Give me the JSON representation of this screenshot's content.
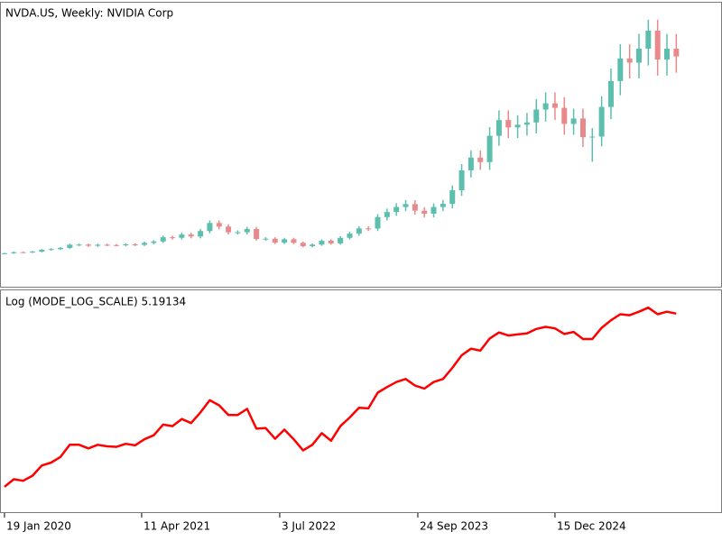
{
  "chart_data": [
    {
      "type": "candlestick",
      "title": "NVDA.US, Weekly:  NVIDIA Corp",
      "open": [
        5.6,
        5.9,
        6.8,
        6.6,
        7.3,
        8.9,
        9.5,
        10.6,
        13.4,
        13.5,
        12.5,
        13.4,
        13.1,
        13.0,
        13.7,
        13.3,
        15.0,
        16.3,
        20.0,
        19.5,
        22.4,
        20.7,
        25.5,
        32.6,
        29.4,
        24.4,
        24.4,
        27.3,
        18.5,
        18.7,
        15.2,
        18.2,
        15.1,
        12.1,
        13.5,
        16.9,
        14.6,
        19.5,
        23.2,
        27.8,
        27.7,
        37.8,
        42.3,
        46.7,
        49.3,
        43.5,
        40.8,
        46.7,
        49.5,
        61.5,
        79.1,
        90.4,
        86.4,
        109.6,
        123.5,
        117.0,
        119.4,
        121.4,
        132.8,
        138.3,
        134.3,
        120.1,
        124.9,
        108.4,
        108.9,
        135.1,
        158.0,
        177.9,
        174.2,
        186.6,
        202.5,
        177.0,
        186.5
      ],
      "high": [
        6.3,
        7.3,
        7.3,
        7.8,
        9.5,
        10.2,
        11.3,
        14.3,
        14.4,
        14.4,
        14.3,
        14.3,
        14.0,
        14.7,
        14.7,
        16.1,
        17.4,
        21.4,
        21.4,
        24.0,
        24.0,
        27.3,
        34.9,
        34.9,
        31.5,
        26.1,
        29.2,
        29.2,
        20.0,
        20.0,
        19.5,
        19.5,
        16.2,
        14.4,
        18.1,
        18.1,
        20.9,
        24.8,
        29.7,
        29.7,
        40.4,
        45.3,
        50.0,
        52.8,
        52.8,
        46.5,
        50.0,
        53.0,
        65.8,
        84.6,
        96.7,
        96.7,
        117.3,
        132.1,
        132.1,
        127.8,
        129.9,
        142.1,
        148.0,
        148.0,
        143.7,
        133.6,
        133.6,
        116.5,
        144.6,
        169.1,
        190.4,
        190.4,
        199.7,
        212.2,
        212.2,
        199.6,
        199.6
      ],
      "low": [
        5.2,
        5.4,
        6.1,
        6.1,
        6.7,
        8.2,
        8.7,
        9.8,
        12.3,
        11.5,
        11.5,
        12.1,
        12.0,
        12.0,
        12.2,
        12.2,
        13.8,
        15.0,
        17.9,
        17.9,
        19.0,
        19.0,
        23.5,
        27.0,
        22.4,
        22.4,
        22.4,
        17.0,
        17.0,
        14.0,
        14.0,
        13.9,
        11.1,
        11.1,
        12.4,
        13.4,
        13.4,
        17.9,
        21.3,
        25.5,
        25.5,
        34.8,
        38.9,
        43.0,
        40.0,
        37.5,
        37.5,
        43.0,
        45.5,
        56.6,
        72.8,
        79.5,
        79.5,
        100.8,
        107.6,
        107.6,
        109.8,
        111.7,
        122.2,
        123.6,
        110.5,
        110.5,
        99.7,
        86.6,
        100.2,
        124.3,
        145.4,
        160.3,
        160.3,
        171.7,
        162.8,
        162.8,
        165.3
      ],
      "close": [
        5.9,
        6.8,
        6.6,
        7.3,
        8.9,
        9.5,
        10.6,
        13.4,
        13.5,
        12.5,
        13.4,
        13.1,
        13.0,
        13.7,
        13.3,
        15.0,
        16.3,
        20.0,
        19.5,
        22.4,
        20.7,
        25.5,
        32.6,
        29.4,
        24.4,
        24.4,
        27.3,
        18.5,
        18.7,
        15.2,
        18.2,
        15.1,
        12.1,
        13.5,
        16.9,
        14.6,
        19.5,
        23.2,
        27.8,
        27.7,
        37.8,
        42.3,
        46.7,
        49.3,
        43.5,
        40.8,
        46.7,
        49.5,
        61.5,
        79.1,
        90.4,
        86.4,
        109.6,
        123.5,
        117.0,
        119.4,
        121.4,
        132.8,
        138.3,
        134.3,
        120.1,
        124.9,
        108.4,
        108.9,
        135.1,
        158.0,
        177.9,
        174.2,
        186.6,
        202.5,
        177.0,
        186.5,
        179.7
      ],
      "up_color": "#5cbfae",
      "down_color": "#e8898b",
      "xlim": [
        -0.48,
        76.9
      ],
      "ylim": [
        -3,
        220
      ]
    },
    {
      "type": "line",
      "title": "Log (MODE_LOG_SCALE) 5.19134",
      "color": "#ff0000",
      "values": [
        1.77,
        1.92,
        1.89,
        1.99,
        2.19,
        2.25,
        2.36,
        2.6,
        2.6,
        2.53,
        2.6,
        2.57,
        2.56,
        2.62,
        2.59,
        2.71,
        2.79,
        3.0,
        2.97,
        3.11,
        3.03,
        3.24,
        3.48,
        3.38,
        3.19,
        3.19,
        3.31,
        2.92,
        2.93,
        2.72,
        2.9,
        2.71,
        2.49,
        2.6,
        2.83,
        2.68,
        2.97,
        3.14,
        3.33,
        3.32,
        3.63,
        3.74,
        3.84,
        3.9,
        3.77,
        3.71,
        3.84,
        3.9,
        4.12,
        4.37,
        4.5,
        4.46,
        4.7,
        4.82,
        4.76,
        4.78,
        4.8,
        4.89,
        4.93,
        4.9,
        4.79,
        4.83,
        4.69,
        4.69,
        4.91,
        5.06,
        5.18,
        5.16,
        5.23,
        5.31,
        5.18,
        5.23,
        5.19134
      ],
      "xlim": [
        -0.48,
        76.9
      ],
      "ylim": [
        1.27,
        5.42
      ],
      "xticks": [
        {
          "value": 0,
          "label": "19 Jan 2020"
        },
        {
          "value": 14.7,
          "label": "11 Apr 2021"
        },
        {
          "value": 29.5,
          "label": "3 Jul 2022"
        },
        {
          "value": 44.3,
          "label": "24 Sep 2023"
        },
        {
          "value": 59.0,
          "label": "15 Dec 2024"
        }
      ]
    }
  ]
}
